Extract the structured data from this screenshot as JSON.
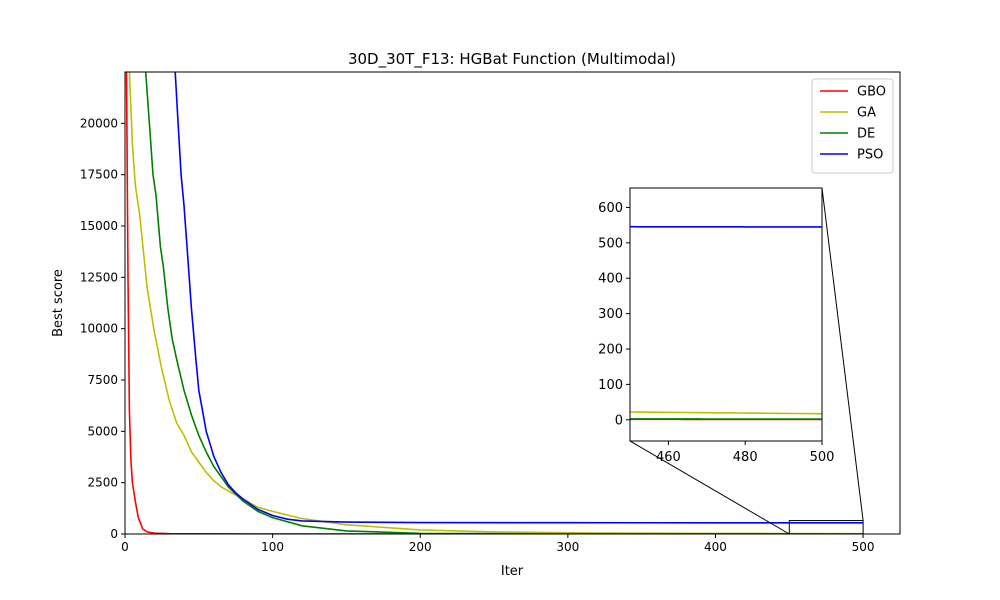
{
  "chart_data": {
    "type": "line",
    "title": "30D_30T_F13: HGBat Function (Multimodal)",
    "xlabel": "Iter",
    "ylabel": "Best score",
    "xlim": [
      0,
      525
    ],
    "ylim": [
      0,
      22500
    ],
    "xticks": [
      0,
      100,
      200,
      300,
      400,
      500
    ],
    "yticks": [
      0,
      2500,
      5000,
      7500,
      10000,
      12500,
      15000,
      17500,
      20000
    ],
    "grid": false,
    "legend_position": "top-right",
    "series": [
      {
        "name": "GBO",
        "color": "#ff0000",
        "x": [
          1,
          2,
          3,
          4,
          5,
          7,
          9,
          12,
          15,
          20,
          30,
          50,
          100,
          200,
          300,
          400,
          500
        ],
        "y": [
          22500,
          12500,
          6000,
          3600,
          2500,
          1600,
          800,
          250,
          100,
          40,
          15,
          8,
          5,
          3,
          2,
          1.5,
          1
        ]
      },
      {
        "name": "GA",
        "color": "#bfbf00",
        "x": [
          3,
          5,
          7,
          10,
          15,
          20,
          25,
          30,
          35,
          40,
          45,
          50,
          55,
          60,
          65,
          70,
          80,
          90,
          100,
          120,
          150,
          200,
          250,
          300,
          350,
          400,
          450,
          500
        ],
        "y": [
          22500,
          19000,
          17000,
          15500,
          12000,
          9800,
          8000,
          6500,
          5400,
          4800,
          4000,
          3500,
          3000,
          2600,
          2300,
          2100,
          1700,
          1300,
          1100,
          750,
          450,
          200,
          100,
          60,
          40,
          30,
          22,
          17
        ]
      },
      {
        "name": "DE",
        "color": "#008000",
        "x": [
          14,
          17,
          19,
          21,
          24,
          26,
          29,
          32,
          35,
          40,
          45,
          50,
          55,
          60,
          65,
          70,
          80,
          90,
          100,
          120,
          150,
          200,
          300,
          400,
          500
        ],
        "y": [
          22500,
          19500,
          17500,
          16500,
          14000,
          13000,
          11000,
          9500,
          8500,
          7000,
          5800,
          4800,
          4000,
          3300,
          2800,
          2300,
          1600,
          1100,
          800,
          400,
          150,
          30,
          5,
          3,
          2
        ]
      },
      {
        "name": "PSO",
        "color": "#0000ff",
        "x": [
          34,
          36,
          38,
          40,
          42,
          45,
          48,
          50,
          52,
          55,
          58,
          60,
          65,
          70,
          75,
          80,
          90,
          100,
          110,
          120,
          150,
          200,
          300,
          400,
          500
        ],
        "y": [
          22500,
          20000,
          17500,
          16000,
          14000,
          11000,
          8500,
          7000,
          6200,
          5000,
          4300,
          3800,
          3000,
          2400,
          2000,
          1700,
          1200,
          900,
          720,
          640,
          580,
          555,
          548,
          546,
          545
        ]
      }
    ],
    "inset": {
      "xlim": [
        450,
        500
      ],
      "ylim": [
        -60,
        655
      ],
      "xticks": [
        460,
        480,
        500
      ],
      "yticks": [
        0,
        100,
        200,
        300,
        400,
        500,
        600
      ],
      "zoom_region": {
        "x": [
          450,
          500
        ],
        "y": [
          0,
          655
        ]
      }
    }
  }
}
